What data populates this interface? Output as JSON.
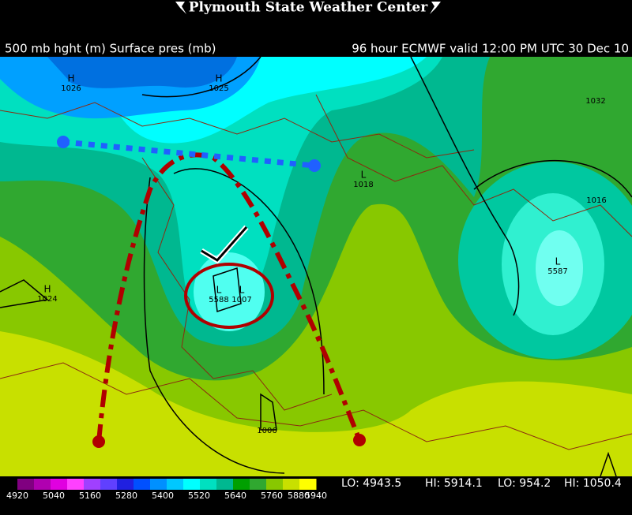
{
  "header": {
    "title": "Plymouth State Weather Center"
  },
  "map": {
    "left_caption": "500 mb hght (m) Surface pres (mb)",
    "right_caption": "96 hour ECMWF  valid 12:00 PM UTC 30 Dec 10",
    "labels": [
      {
        "symbol": "H",
        "value": "1026"
      },
      {
        "symbol": "H",
        "value": "1025"
      },
      {
        "symbol": "",
        "value": "1032"
      },
      {
        "symbol": "L",
        "value": "1018"
      },
      {
        "symbol": "",
        "value": "1016"
      },
      {
        "symbol": "L",
        "value": "5587"
      },
      {
        "symbol": "H",
        "value": "1024"
      },
      {
        "symbol": "L",
        "value": "5588"
      },
      {
        "symbol": "L",
        "value": "1007"
      },
      {
        "symbol": "",
        "value": "1006"
      }
    ]
  },
  "colorbar": {
    "labels": [
      "4920",
      "5040",
      "5160",
      "5280",
      "5400",
      "5520",
      "5640",
      "5760",
      "5880",
      "5940"
    ]
  },
  "stats": [
    "LO: 4943.5",
    "HI: 5914.1",
    "LO: 954.2",
    "HI: 1050.4"
  ]
}
